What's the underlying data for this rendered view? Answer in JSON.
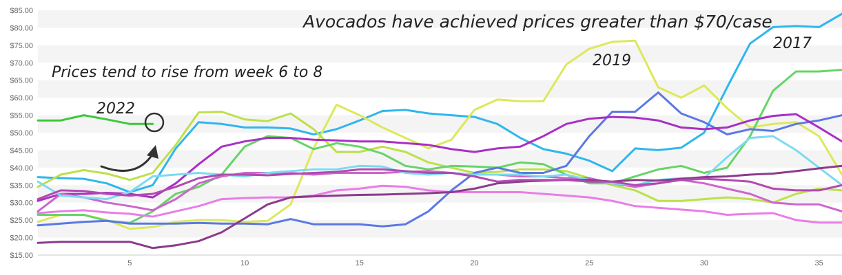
{
  "chart_data": {
    "type": "line",
    "title": "",
    "xlabel": "",
    "ylabel": "",
    "xlim": [
      1,
      36
    ],
    "ylim": [
      15,
      85
    ],
    "x_ticks": [
      5,
      10,
      15,
      20,
      25,
      30,
      35
    ],
    "y_ticks": [
      "$15.00",
      "$20.00",
      "$25.00",
      "$30.00",
      "$35.00",
      "$40.00",
      "$45.00",
      "$50.00",
      "$55.00",
      "$60.00",
      "$65.00",
      "$70.00",
      "$75.00",
      "$80.00",
      "$85.00"
    ],
    "grid": "horizontal-bands",
    "series": [
      {
        "color": "#3cc83c",
        "x": [
          1,
          2,
          3,
          4,
          5,
          6
        ],
        "values": [
          53.5,
          53.5,
          55,
          53.8,
          52.5,
          52.5
        ]
      },
      {
        "color": "#2fb6ee",
        "x": [
          1,
          2,
          3,
          4,
          5,
          6,
          7,
          8,
          9,
          10,
          11,
          12,
          13,
          14,
          15,
          16,
          17,
          18,
          19,
          20,
          21,
          22,
          23,
          24,
          25,
          26,
          27,
          28,
          29,
          30,
          31,
          32,
          33,
          34,
          35,
          36
        ],
        "values": [
          37.3,
          37,
          36.8,
          35.5,
          33,
          35,
          45.5,
          53,
          52.5,
          51.5,
          51.5,
          51.2,
          49.5,
          51,
          53.5,
          56.2,
          56.5,
          55.5,
          55,
          54.5,
          52.5,
          48.5,
          45.3,
          44,
          42,
          39,
          45.5,
          45,
          45.7,
          50,
          63,
          75.5,
          80.2,
          80.5,
          80.2,
          84
        ]
      },
      {
        "color": "#dde85a",
        "x": [
          1,
          2,
          3,
          4,
          5,
          6,
          7,
          8,
          9,
          10,
          11,
          12,
          13,
          14,
          15,
          16,
          17,
          18,
          19,
          20,
          21,
          22,
          23,
          24,
          25,
          26,
          27,
          28,
          29,
          30,
          31,
          32,
          33,
          34,
          35,
          36
        ],
        "values": [
          24.5,
          26.5,
          26.5,
          25,
          22.5,
          23,
          24.5,
          25,
          25,
          24.5,
          24.8,
          29.5,
          45.5,
          58,
          55,
          51.5,
          48.5,
          45.5,
          48,
          56.5,
          59.5,
          59,
          59,
          69.5,
          74,
          76,
          76.3,
          63,
          60,
          63.5,
          57,
          51.5,
          52.5,
          53,
          49,
          38
        ]
      },
      {
        "color": "#bde04a",
        "x": [
          1,
          2,
          3,
          4,
          5,
          6,
          7,
          8,
          9,
          10,
          11,
          12,
          13,
          14,
          15,
          16,
          17,
          18,
          19,
          20,
          21,
          22,
          23,
          24,
          25,
          26,
          27,
          28,
          29,
          30,
          31,
          32,
          33,
          34,
          35,
          36
        ],
        "values": [
          34.5,
          38,
          39.3,
          38.3,
          36.5,
          38.5,
          46.5,
          55.8,
          56,
          53.8,
          53.3,
          55.5,
          51,
          44.5,
          44.5,
          46,
          44.5,
          41.5,
          40,
          38.5,
          38.8,
          39.5,
          39.5,
          39,
          37,
          35,
          33.5,
          30.5,
          30.5,
          31,
          31.5,
          31,
          30,
          32.5,
          34,
          33.5
        ]
      },
      {
        "color": "#66d466",
        "x": [
          1,
          2,
          3,
          4,
          5,
          6,
          7,
          8,
          9,
          10,
          11,
          12,
          13,
          14,
          15,
          16,
          17,
          18,
          19,
          20,
          21,
          22,
          23,
          24,
          25,
          26,
          27,
          28,
          29,
          30,
          31,
          32,
          33,
          34,
          35,
          36
        ],
        "values": [
          26.5,
          26.5,
          26.5,
          24.8,
          24.2,
          27.5,
          32.5,
          34.5,
          38,
          46,
          49,
          48.5,
          45.3,
          47,
          46,
          44,
          40.5,
          39.5,
          40.5,
          40.3,
          40,
          41.5,
          41,
          38,
          35.5,
          35.5,
          37.5,
          39.5,
          40.5,
          38.5,
          40,
          49,
          62,
          67.5,
          67.5,
          68
        ]
      },
      {
        "color": "#5a78e6",
        "x": [
          1,
          2,
          3,
          4,
          5,
          6,
          7,
          8,
          9,
          10,
          11,
          12,
          13,
          14,
          15,
          16,
          17,
          18,
          19,
          20,
          21,
          22,
          23,
          24,
          25,
          26,
          27,
          28,
          29,
          30,
          31,
          32,
          33,
          34,
          35,
          36
        ],
        "values": [
          23.5,
          24,
          24.5,
          24.8,
          24,
          24,
          24,
          24.2,
          24,
          24,
          23.8,
          25.3,
          23.8,
          23.8,
          23.8,
          23.2,
          23.8,
          27.5,
          33.5,
          38.5,
          40,
          38.5,
          38.5,
          40.5,
          49,
          56,
          56,
          61.5,
          55.5,
          53,
          49.5,
          51,
          50.5,
          52.5,
          53.5,
          55
        ]
      },
      {
        "color": "#a92fc5",
        "x": [
          1,
          2,
          3,
          4,
          5,
          6,
          7,
          8,
          9,
          10,
          11,
          12,
          13,
          14,
          15,
          16,
          17,
          18,
          19,
          20,
          21,
          22,
          23,
          24,
          25,
          26,
          27,
          28,
          29,
          30,
          31,
          32,
          33,
          34,
          35,
          36
        ],
        "values": [
          30.5,
          32.5,
          32.5,
          32.8,
          32.5,
          31.5,
          35.5,
          41,
          46,
          47.5,
          48.5,
          48.5,
          48,
          47.8,
          47.5,
          47.5,
          47,
          46.5,
          45.3,
          44.5,
          45.5,
          46,
          49,
          52.5,
          54,
          54.5,
          54.3,
          53.5,
          51.5,
          51,
          51.5,
          53.5,
          54.8,
          55.3,
          51.5,
          47.5
        ]
      },
      {
        "color": "#cc66cc",
        "x": [
          1,
          2,
          3,
          4,
          5,
          6,
          7,
          8,
          9,
          10,
          11,
          12,
          13,
          14,
          15,
          16,
          17,
          18,
          19,
          20,
          21,
          22,
          23,
          24,
          25,
          26,
          27,
          28,
          29,
          30,
          31,
          32,
          33,
          34,
          35,
          36
        ],
        "values": [
          27.5,
          32.5,
          31.5,
          30,
          29,
          27.8,
          31,
          35.5,
          37.5,
          38.5,
          38.5,
          38.5,
          38,
          38.5,
          38.5,
          38.5,
          38.8,
          39,
          38.5,
          38,
          38,
          37.5,
          37.5,
          37,
          37,
          35.5,
          34.5,
          35.5,
          36.5,
          35.5,
          34,
          32.5,
          30,
          29.5,
          29.5,
          27.5
        ]
      },
      {
        "color": "#7ddaf0",
        "x": [
          1,
          2,
          3,
          4,
          5,
          6,
          7,
          8,
          9,
          10,
          11,
          12,
          13,
          14,
          15,
          16,
          17,
          18,
          19,
          20,
          21,
          22,
          23,
          24,
          25,
          26,
          27,
          28,
          29,
          30,
          31,
          32,
          33,
          34,
          35,
          36
        ],
        "values": [
          36,
          32,
          31.5,
          31,
          33,
          37.5,
          38,
          38.5,
          38,
          37.5,
          38.5,
          39,
          39.5,
          39.5,
          40.5,
          40.3,
          38.5,
          38,
          38.5,
          38,
          38,
          38,
          37.5,
          38,
          36.5,
          35.5,
          35,
          36.5,
          37,
          37,
          43,
          48.5,
          49,
          45,
          40,
          35
        ]
      },
      {
        "color": "#e87de8",
        "x": [
          1,
          2,
          3,
          4,
          5,
          6,
          7,
          8,
          9,
          10,
          11,
          12,
          13,
          14,
          15,
          16,
          17,
          18,
          19,
          20,
          21,
          22,
          23,
          24,
          25,
          26,
          27,
          28,
          29,
          30,
          31,
          32,
          33,
          34,
          35,
          36
        ],
        "values": [
          27,
          27.5,
          27.8,
          27.2,
          26.8,
          26,
          27.5,
          29,
          31,
          31.3,
          31.5,
          31.5,
          32,
          33.5,
          34,
          34.8,
          34.5,
          33.5,
          33,
          33,
          33,
          33,
          32.5,
          32,
          31.5,
          30.5,
          29,
          28.5,
          28,
          27.5,
          26.5,
          26.8,
          27,
          25,
          24.3,
          24.3
        ]
      },
      {
        "color": "#8c3a8c",
        "x": [
          1,
          2,
          3,
          4,
          5,
          6,
          7,
          8,
          9,
          10,
          11,
          12,
          13,
          14,
          15,
          16,
          17,
          18,
          19,
          20,
          21,
          22,
          23,
          24,
          25,
          26,
          27,
          28,
          29,
          30,
          31,
          32,
          33,
          34,
          35,
          36
        ],
        "values": [
          18.5,
          18.8,
          18.8,
          18.8,
          18.8,
          17,
          17.8,
          19,
          21.5,
          25.5,
          29.5,
          31.5,
          31.8,
          32,
          32.2,
          32.3,
          32.5,
          32.7,
          33,
          34,
          35.5,
          36,
          36.3,
          36.5,
          36.5,
          36,
          36.5,
          36.3,
          36.8,
          37.3,
          37.5,
          38,
          38.3,
          39,
          39.8,
          40.5
        ]
      },
      {
        "color": "#b04ab0",
        "x": [
          1,
          2,
          3,
          4,
          5,
          6,
          7,
          8,
          9,
          10,
          11,
          12,
          13,
          14,
          15,
          16,
          17,
          18,
          19,
          20,
          21,
          22,
          23,
          24,
          25,
          26,
          27,
          28,
          29,
          30,
          31,
          32,
          33,
          34,
          35,
          36
        ],
        "values": [
          31,
          33.5,
          33.3,
          32.5,
          32,
          32.5,
          34.5,
          37,
          38,
          38,
          37.8,
          38.2,
          38.5,
          38.8,
          39.5,
          39.5,
          39,
          38.5,
          38.5,
          37.5,
          36,
          36.5,
          36.5,
          36.5,
          36,
          36,
          35,
          35.5,
          36.5,
          36.8,
          36.5,
          36,
          34,
          33.5,
          33.5,
          35
        ]
      }
    ],
    "annotations": [
      {
        "text": "Avocados have achieved prices greater than $70/case"
      },
      {
        "text": "2017"
      },
      {
        "text": "2019"
      },
      {
        "text": "Prices tend to rise from week 6 to 8"
      },
      {
        "text": "2022"
      }
    ]
  }
}
